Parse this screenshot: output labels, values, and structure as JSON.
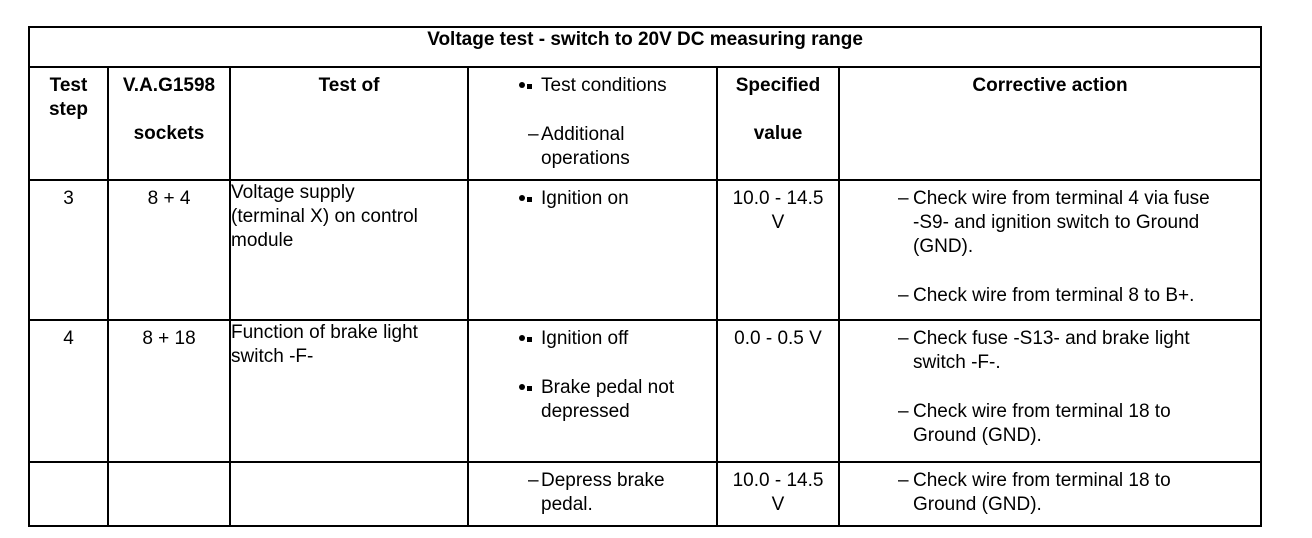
{
  "table": {
    "title": "Voltage test - switch to 20V DC measuring range",
    "headers": {
      "test_step": [
        "Test",
        "step"
      ],
      "vag": [
        "V.A.G1598",
        "sockets"
      ],
      "test_of": "Test of",
      "conditions_line": "Test conditions",
      "operations": [
        "Additional",
        "operations"
      ],
      "specified": [
        "Specified",
        "value"
      ],
      "corrective": "Corrective action"
    },
    "rows": [
      {
        "step": "3",
        "sockets": "8 + 4",
        "test_of": [
          "Voltage supply",
          "(terminal X) on control",
          "module"
        ],
        "conditions": [
          [
            "Ignition on"
          ]
        ],
        "operations": [],
        "value": [
          "10.0 - 14.5",
          "V"
        ],
        "actions": [
          [
            "Check wire from terminal 4 via fuse",
            "-S9- and ignition switch to Ground",
            "(GND)."
          ],
          [
            "Check wire from terminal 8 to B+."
          ]
        ]
      },
      {
        "step": "4",
        "sockets": "8 + 18",
        "test_of": [
          "Function of brake light",
          "switch -F-"
        ],
        "conditions": [
          [
            "Ignition off"
          ],
          [
            "Brake pedal not",
            "depressed"
          ]
        ],
        "operations": [],
        "value": [
          "0.0 - 0.5 V"
        ],
        "actions": [
          [
            "Check fuse -S13- and brake light",
            "switch -F-."
          ],
          [
            "Check wire from terminal 18 to",
            "Ground (GND)."
          ]
        ]
      },
      {
        "step": "",
        "sockets": "",
        "test_of": [],
        "conditions": [],
        "operations": [
          [
            "Depress brake",
            "pedal."
          ]
        ],
        "value": [
          "10.0 - 14.5",
          "V"
        ],
        "actions": [
          [
            "Check wire from terminal 18 to",
            "Ground (GND)."
          ]
        ]
      }
    ]
  }
}
